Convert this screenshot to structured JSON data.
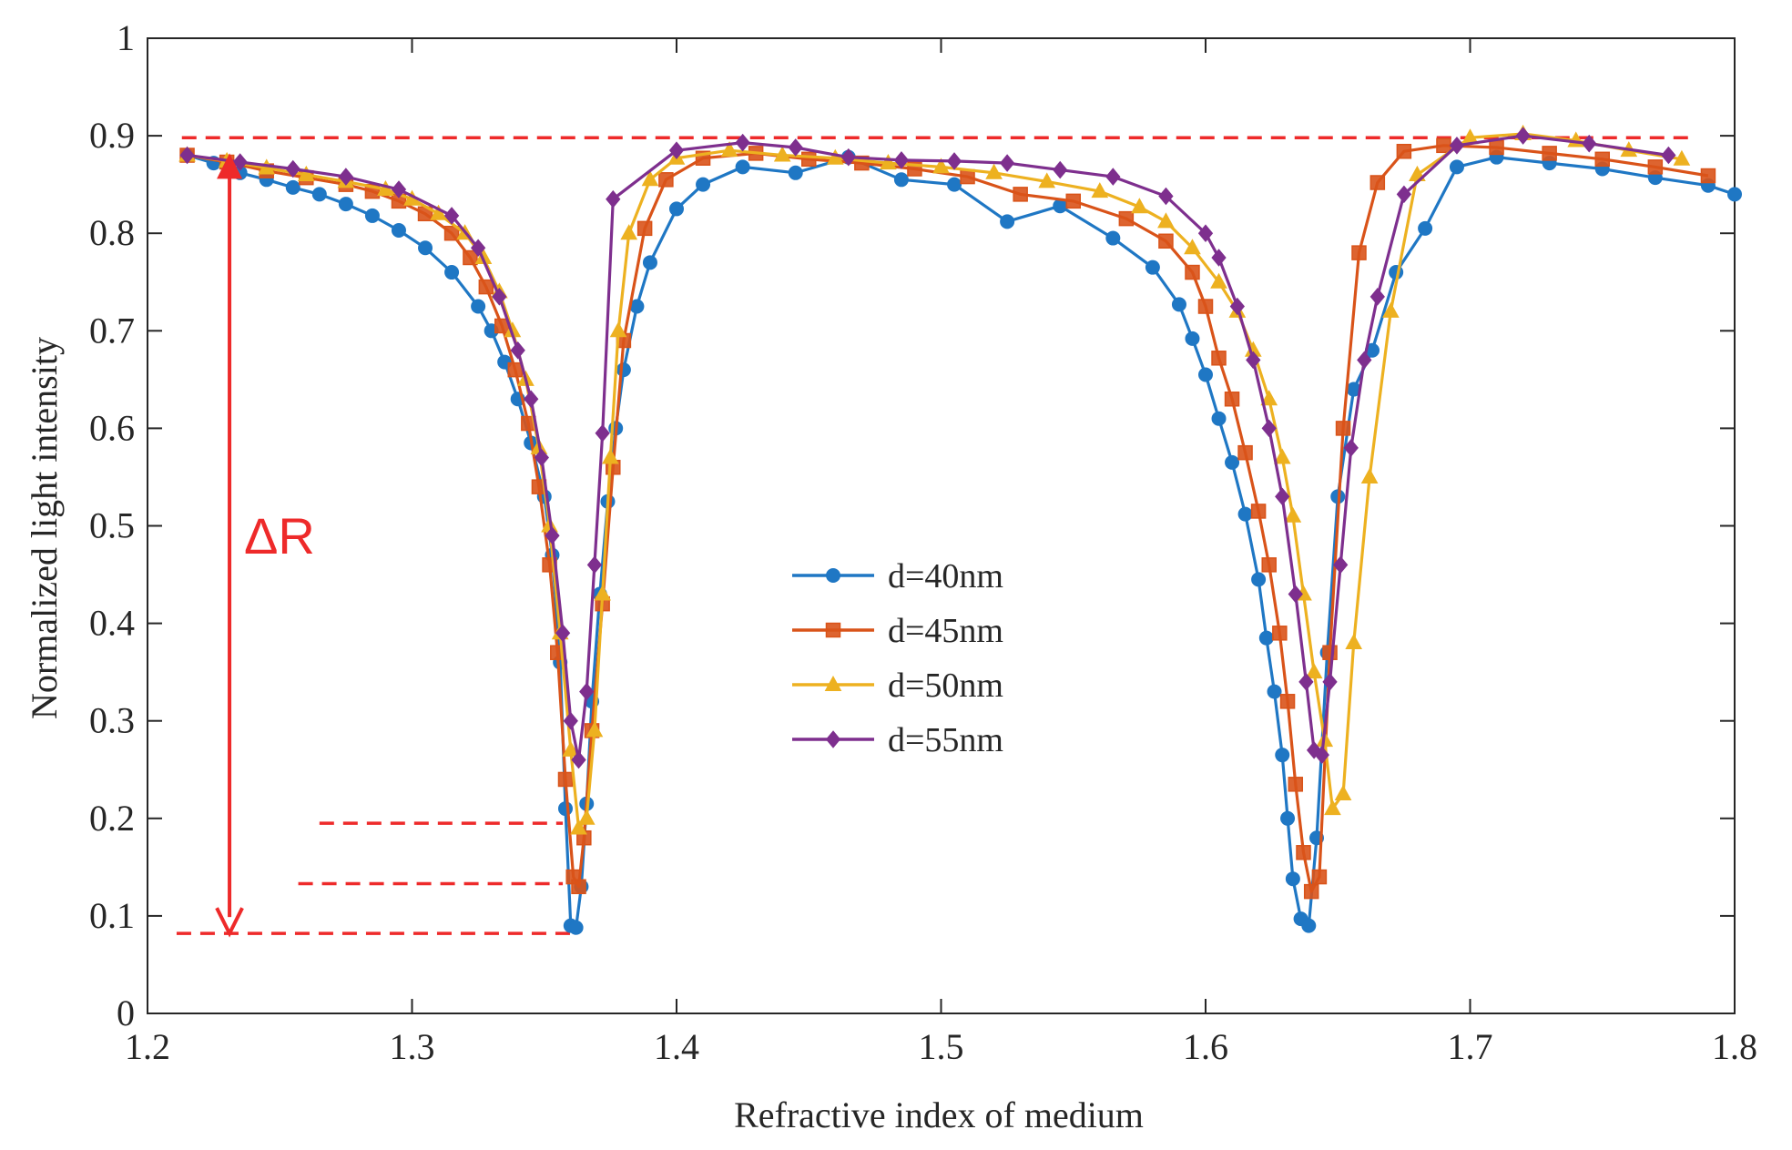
{
  "chart_data": {
    "type": "line",
    "title": "",
    "xlabel": "Refractive index of medium",
    "ylabel": "Normalized light intensity",
    "xlim": [
      1.2,
      1.8
    ],
    "ylim": [
      0,
      1
    ],
    "xticks": [
      1.2,
      1.3,
      1.4,
      1.5,
      1.6,
      1.7,
      1.8
    ],
    "xtick_labels": [
      "1.2",
      "1.3",
      "1.4",
      "1.5",
      "1.6",
      "1.7",
      "1.8"
    ],
    "yticks": [
      0,
      0.1,
      0.2,
      0.3,
      0.4,
      0.5,
      0.6,
      0.7,
      0.8,
      0.9,
      1
    ],
    "ytick_labels": [
      "0",
      "0.1",
      "0.2",
      "0.3",
      "0.4",
      "0.5",
      "0.6",
      "0.7",
      "0.8",
      "0.9",
      "1"
    ],
    "grid": false,
    "legend_position": "center",
    "series": [
      {
        "name": "d=40nm",
        "color": "#1f77c4",
        "marker": "circle",
        "x": [
          1.215,
          1.225,
          1.235,
          1.245,
          1.255,
          1.265,
          1.275,
          1.285,
          1.295,
          1.305,
          1.315,
          1.325,
          1.33,
          1.335,
          1.34,
          1.345,
          1.35,
          1.353,
          1.356,
          1.358,
          1.36,
          1.362,
          1.364,
          1.366,
          1.368,
          1.371,
          1.374,
          1.377,
          1.38,
          1.385,
          1.39,
          1.4,
          1.41,
          1.425,
          1.445,
          1.465,
          1.485,
          1.505,
          1.525,
          1.545,
          1.565,
          1.58,
          1.59,
          1.595,
          1.6,
          1.605,
          1.61,
          1.615,
          1.62,
          1.623,
          1.626,
          1.629,
          1.631,
          1.633,
          1.636,
          1.639,
          1.642,
          1.646,
          1.65,
          1.656,
          1.663,
          1.672,
          1.683,
          1.695,
          1.71,
          1.73,
          1.75,
          1.77,
          1.79,
          1.8
        ],
        "y": [
          0.88,
          0.872,
          0.862,
          0.855,
          0.847,
          0.84,
          0.83,
          0.818,
          0.803,
          0.785,
          0.76,
          0.725,
          0.7,
          0.668,
          0.63,
          0.585,
          0.53,
          0.47,
          0.36,
          0.21,
          0.09,
          0.088,
          0.13,
          0.215,
          0.32,
          0.43,
          0.525,
          0.6,
          0.66,
          0.725,
          0.77,
          0.825,
          0.85,
          0.868,
          0.862,
          0.878,
          0.855,
          0.85,
          0.812,
          0.828,
          0.795,
          0.765,
          0.727,
          0.692,
          0.655,
          0.61,
          0.565,
          0.512,
          0.445,
          0.385,
          0.33,
          0.265,
          0.2,
          0.138,
          0.097,
          0.09,
          0.18,
          0.37,
          0.53,
          0.64,
          0.68,
          0.76,
          0.805,
          0.868,
          0.878,
          0.872,
          0.866,
          0.857,
          0.849,
          0.84
        ]
      },
      {
        "name": "d=45nm",
        "color": "#d95319",
        "marker": "square",
        "x": [
          1.215,
          1.23,
          1.245,
          1.26,
          1.275,
          1.285,
          1.295,
          1.305,
          1.315,
          1.322,
          1.328,
          1.334,
          1.339,
          1.344,
          1.348,
          1.352,
          1.355,
          1.358,
          1.361,
          1.363,
          1.365,
          1.368,
          1.372,
          1.376,
          1.38,
          1.388,
          1.396,
          1.41,
          1.43,
          1.45,
          1.47,
          1.49,
          1.51,
          1.53,
          1.55,
          1.57,
          1.585,
          1.595,
          1.6,
          1.605,
          1.61,
          1.615,
          1.62,
          1.624,
          1.628,
          1.631,
          1.634,
          1.637,
          1.64,
          1.643,
          1.647,
          1.652,
          1.658,
          1.665,
          1.675,
          1.69,
          1.71,
          1.73,
          1.75,
          1.77,
          1.79
        ],
        "y": [
          0.88,
          0.873,
          0.864,
          0.857,
          0.85,
          0.843,
          0.833,
          0.82,
          0.8,
          0.775,
          0.745,
          0.705,
          0.66,
          0.605,
          0.54,
          0.46,
          0.37,
          0.24,
          0.14,
          0.13,
          0.18,
          0.29,
          0.42,
          0.56,
          0.69,
          0.805,
          0.855,
          0.877,
          0.882,
          0.876,
          0.872,
          0.866,
          0.858,
          0.84,
          0.833,
          0.815,
          0.792,
          0.76,
          0.725,
          0.672,
          0.63,
          0.575,
          0.515,
          0.46,
          0.39,
          0.32,
          0.235,
          0.165,
          0.125,
          0.14,
          0.37,
          0.6,
          0.78,
          0.852,
          0.884,
          0.89,
          0.888,
          0.882,
          0.876,
          0.868,
          0.859
        ]
      },
      {
        "name": "d=50nm",
        "color": "#edb120",
        "marker": "triangle",
        "x": [
          1.215,
          1.23,
          1.245,
          1.26,
          1.275,
          1.29,
          1.3,
          1.31,
          1.32,
          1.327,
          1.333,
          1.338,
          1.343,
          1.348,
          1.352,
          1.356,
          1.36,
          1.363,
          1.366,
          1.369,
          1.372,
          1.375,
          1.378,
          1.382,
          1.39,
          1.4,
          1.42,
          1.44,
          1.46,
          1.48,
          1.5,
          1.52,
          1.54,
          1.56,
          1.575,
          1.585,
          1.595,
          1.605,
          1.612,
          1.618,
          1.624,
          1.629,
          1.633,
          1.637,
          1.641,
          1.645,
          1.648,
          1.652,
          1.656,
          1.662,
          1.67,
          1.68,
          1.7,
          1.72,
          1.74,
          1.76,
          1.78
        ],
        "y": [
          0.88,
          0.874,
          0.867,
          0.86,
          0.853,
          0.845,
          0.835,
          0.82,
          0.8,
          0.775,
          0.74,
          0.7,
          0.65,
          0.58,
          0.5,
          0.39,
          0.27,
          0.19,
          0.2,
          0.29,
          0.43,
          0.57,
          0.7,
          0.8,
          0.855,
          0.877,
          0.885,
          0.88,
          0.877,
          0.872,
          0.868,
          0.862,
          0.853,
          0.843,
          0.827,
          0.812,
          0.785,
          0.75,
          0.72,
          0.68,
          0.63,
          0.57,
          0.51,
          0.43,
          0.35,
          0.28,
          0.21,
          0.225,
          0.38,
          0.55,
          0.72,
          0.86,
          0.898,
          0.902,
          0.895,
          0.885,
          0.876
        ]
      },
      {
        "name": "d=55nm",
        "color": "#7e2f8e",
        "marker": "diamond",
        "x": [
          1.215,
          1.235,
          1.255,
          1.275,
          1.295,
          1.315,
          1.325,
          1.333,
          1.34,
          1.345,
          1.349,
          1.353,
          1.357,
          1.36,
          1.363,
          1.366,
          1.369,
          1.372,
          1.376,
          1.4,
          1.425,
          1.445,
          1.465,
          1.485,
          1.505,
          1.525,
          1.545,
          1.565,
          1.585,
          1.6,
          1.605,
          1.612,
          1.618,
          1.624,
          1.629,
          1.634,
          1.638,
          1.641,
          1.644,
          1.647,
          1.651,
          1.655,
          1.66,
          1.665,
          1.675,
          1.695,
          1.72,
          1.745,
          1.775
        ],
        "y": [
          0.88,
          0.873,
          0.866,
          0.858,
          0.845,
          0.818,
          0.785,
          0.735,
          0.68,
          0.63,
          0.57,
          0.49,
          0.39,
          0.3,
          0.26,
          0.33,
          0.46,
          0.595,
          0.835,
          0.885,
          0.893,
          0.888,
          0.878,
          0.875,
          0.874,
          0.872,
          0.865,
          0.858,
          0.838,
          0.8,
          0.775,
          0.725,
          0.67,
          0.6,
          0.53,
          0.43,
          0.34,
          0.27,
          0.265,
          0.34,
          0.46,
          0.58,
          0.67,
          0.735,
          0.84,
          0.89,
          0.9,
          0.892,
          0.88
        ]
      }
    ],
    "annotations": {
      "delta_label": "ΔR",
      "hlines": [
        0.898,
        0.195,
        0.133,
        0.082
      ],
      "arrow_from": 0.882,
      "arrow_to": 0.082,
      "color": "#ee2a2a"
    }
  }
}
